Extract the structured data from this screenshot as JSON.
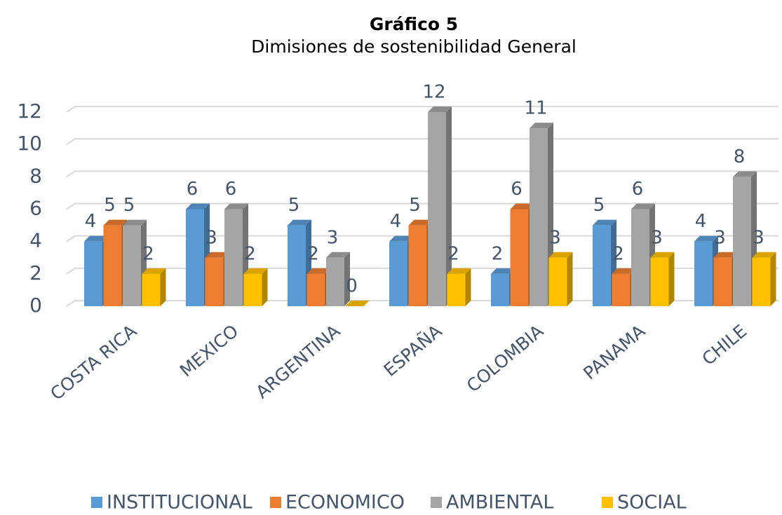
{
  "chart_data": {
    "type": "bar3d",
    "title": "Gráfico 5",
    "subtitle": "Dimisiones de sostenibilidad General",
    "categories": [
      "COSTA RICA",
      "MEXICO",
      "ARGENTINA",
      "ESPAÑA",
      "COLOMBIA",
      "PANAMA",
      "CHILE"
    ],
    "series": [
      {
        "name": "INSTITUCIONAL",
        "color": "#5b9bd5",
        "values": [
          4,
          6,
          5,
          4,
          2,
          5,
          4
        ]
      },
      {
        "name": "ECONOMICO",
        "color": "#ed7d31",
        "values": [
          5,
          3,
          2,
          5,
          6,
          2,
          3
        ]
      },
      {
        "name": "AMBIENTAL",
        "color": "#a5a5a5",
        "values": [
          5,
          6,
          3,
          12,
          11,
          6,
          8
        ]
      },
      {
        "name": "SOCIAL",
        "color": "#ffc000",
        "values": [
          2,
          2,
          0,
          2,
          3,
          3,
          3
        ]
      }
    ],
    "ylim": [
      0,
      12
    ],
    "yticks": [
      0,
      2,
      4,
      6,
      8,
      10,
      12
    ],
    "grid": true,
    "legend": "bottom"
  }
}
